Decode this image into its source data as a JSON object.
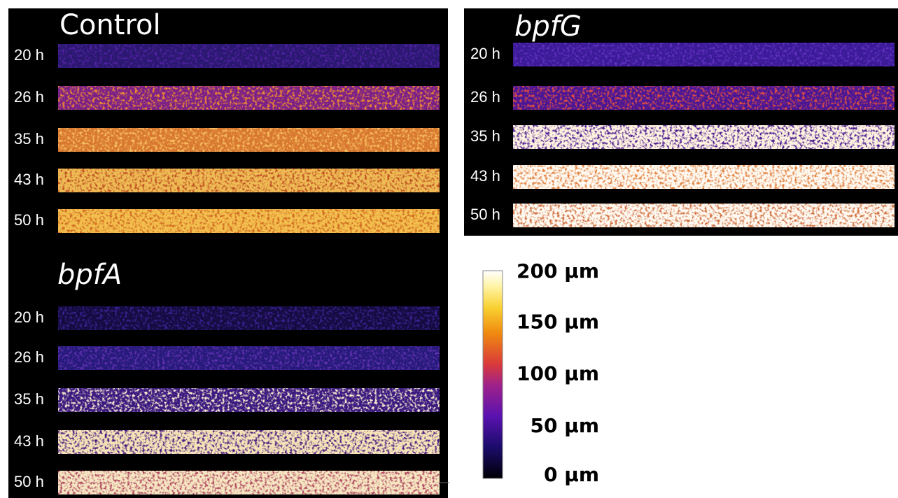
{
  "panels": [
    {
      "title": "Control",
      "rows": [
        "20 h",
        "26 h",
        "35 h",
        "43 h",
        "50 h"
      ]
    },
    {
      "title": "bpfG",
      "rows": [
        "20 h",
        "26 h",
        "35 h",
        "43 h",
        "50 h"
      ]
    },
    {
      "title": "bpfA",
      "rows": [
        "20 h",
        "26 h",
        "35 h",
        "43 h",
        "50 h"
      ]
    }
  ],
  "colorbar": {
    "lim": [
      0,
      200
    ],
    "ticks": [
      {
        "value": 200,
        "label": "200 µm"
      },
      {
        "value": 150,
        "label": "150 µm"
      },
      {
        "value": 100,
        "label": "100 µm"
      },
      {
        "value": 50,
        "label": "50 µm"
      },
      {
        "value": 0,
        "label": "0 µm"
      }
    ]
  }
}
